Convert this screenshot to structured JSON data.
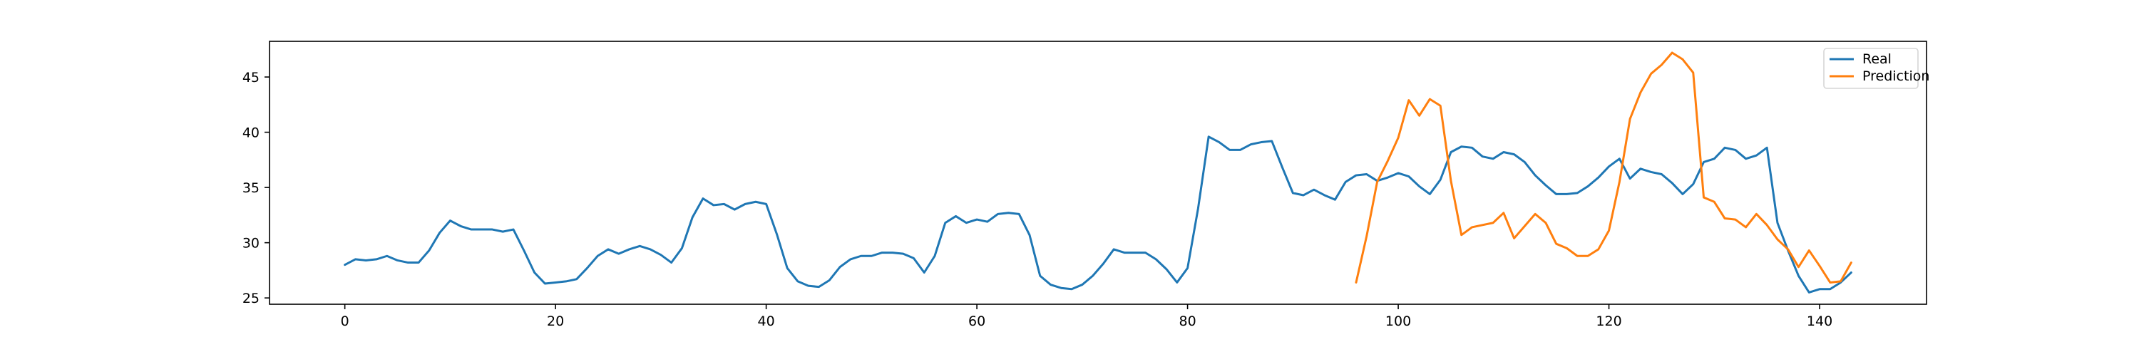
{
  "chart_data": {
    "type": "line",
    "title": "",
    "xlabel": "",
    "ylabel": "",
    "xlim": [
      -7.15,
      150.15
    ],
    "ylim": [
      24.43,
      48.23
    ],
    "xticks": [
      0,
      20,
      40,
      60,
      80,
      100,
      120,
      140
    ],
    "yticks": [
      25,
      30,
      35,
      40,
      45
    ],
    "grid": false,
    "legend_position": "upper right",
    "series": [
      {
        "name": "Real",
        "color": "#1f77b4",
        "x": [
          0,
          1,
          2,
          3,
          4,
          5,
          6,
          7,
          8,
          9,
          10,
          11,
          12,
          13,
          14,
          15,
          16,
          17,
          18,
          19,
          20,
          21,
          22,
          23,
          24,
          25,
          26,
          27,
          28,
          29,
          30,
          31,
          32,
          33,
          34,
          35,
          36,
          37,
          38,
          39,
          40,
          41,
          42,
          43,
          44,
          45,
          46,
          47,
          48,
          49,
          50,
          51,
          52,
          53,
          54,
          55,
          56,
          57,
          58,
          59,
          60,
          61,
          62,
          63,
          64,
          65,
          66,
          67,
          68,
          69,
          70,
          71,
          72,
          73,
          74,
          75,
          76,
          77,
          78,
          79,
          80,
          81,
          82,
          83,
          84,
          85,
          86,
          87,
          88,
          89,
          90,
          91,
          92,
          93,
          94,
          95,
          96,
          97,
          98,
          99,
          100,
          101,
          102,
          103,
          104,
          105,
          106,
          107,
          108,
          109,
          110,
          111,
          112,
          113,
          114,
          115,
          116,
          117,
          118,
          119,
          120,
          121,
          122,
          123,
          124,
          125,
          126,
          127,
          128,
          129,
          130,
          131,
          132,
          133,
          134,
          135,
          136,
          137,
          138,
          139,
          140,
          141,
          142,
          143
        ],
        "y": [
          28.0,
          28.5,
          28.4,
          28.5,
          28.8,
          28.4,
          28.2,
          28.2,
          29.3,
          30.9,
          32.0,
          31.5,
          31.2,
          31.2,
          31.2,
          31.0,
          31.2,
          29.3,
          27.3,
          26.3,
          26.4,
          26.5,
          26.7,
          27.7,
          28.8,
          29.4,
          29.0,
          29.4,
          29.7,
          29.4,
          28.9,
          28.2,
          29.5,
          32.3,
          34.0,
          33.4,
          33.5,
          33.0,
          33.5,
          33.7,
          33.5,
          30.8,
          27.7,
          26.5,
          26.1,
          26.0,
          26.6,
          27.8,
          28.5,
          28.8,
          28.8,
          29.1,
          29.1,
          29.0,
          28.6,
          27.3,
          28.8,
          31.8,
          32.4,
          31.8,
          32.1,
          31.9,
          32.6,
          32.7,
          32.6,
          30.7,
          27.0,
          26.2,
          25.9,
          25.8,
          26.2,
          27.0,
          28.1,
          29.4,
          29.1,
          29.1,
          29.1,
          28.5,
          27.6,
          26.4,
          27.7,
          33.1,
          39.6,
          39.1,
          38.4,
          38.4,
          38.9,
          39.1,
          39.2,
          36.8,
          34.5,
          34.3,
          34.8,
          34.3,
          33.9,
          35.5,
          36.1,
          36.2,
          35.6,
          35.9,
          36.3,
          36.0,
          35.1,
          34.4,
          35.7,
          38.2,
          38.7,
          38.6,
          37.8,
          37.6,
          38.2,
          38.0,
          37.3,
          36.1,
          35.2,
          34.4,
          34.4,
          34.5,
          35.1,
          35.9,
          36.9,
          37.6,
          35.8,
          36.7,
          36.4,
          36.2,
          35.4,
          34.4,
          35.3,
          37.3,
          37.6,
          38.6,
          38.4,
          37.6,
          37.9,
          38.6,
          31.8,
          29.3,
          27.0,
          25.5,
          25.8,
          25.8,
          26.4,
          27.3
        ]
      },
      {
        "name": "Prediction",
        "color": "#ff7f0e",
        "x": [
          96,
          97,
          98,
          99,
          100,
          101,
          102,
          103,
          104,
          105,
          106,
          107,
          108,
          109,
          110,
          111,
          112,
          113,
          114,
          115,
          116,
          117,
          118,
          119,
          120,
          121,
          122,
          123,
          124,
          125,
          126,
          127,
          128,
          129,
          130,
          131,
          132,
          133,
          134,
          135,
          136,
          137,
          138,
          139,
          140,
          141,
          142,
          143
        ],
        "y": [
          26.4,
          30.6,
          35.5,
          37.4,
          39.5,
          42.9,
          41.5,
          43.0,
          42.4,
          35.6,
          30.7,
          31.4,
          31.6,
          31.8,
          32.7,
          30.4,
          31.5,
          32.6,
          31.8,
          29.9,
          29.5,
          28.8,
          28.8,
          29.4,
          31.1,
          35.5,
          41.2,
          43.6,
          45.3,
          46.1,
          47.2,
          46.6,
          45.4,
          34.1,
          33.7,
          32.2,
          32.1,
          31.4,
          32.6,
          31.6,
          30.3,
          29.4,
          27.8,
          29.3,
          27.9,
          26.4,
          26.5,
          28.2
        ]
      }
    ]
  }
}
